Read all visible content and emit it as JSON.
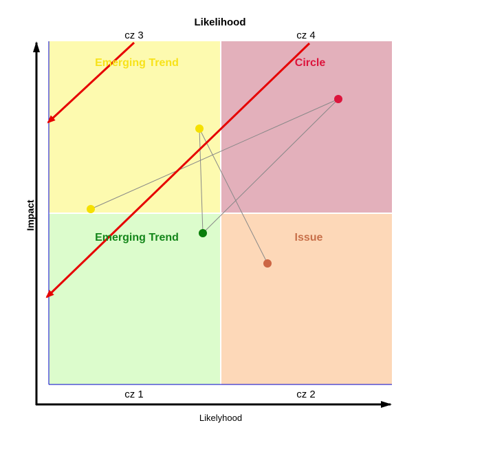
{
  "title": "Likelihood",
  "x_axis_label": "Likelyhood",
  "y_axis_label": "Impact",
  "zones": {
    "top_left": "cz 3",
    "top_right": "cz 4",
    "bottom_left": "cz 1",
    "bottom_right": "cz 2"
  },
  "quadrants": {
    "top_left": {
      "label": "Emerging Trend",
      "fill": "#fdfaaf",
      "label_color": "#f7e21a"
    },
    "top_right": {
      "label": "Circle",
      "fill": "#e3b0bb",
      "label_color": "#dc143c"
    },
    "bottom_left": {
      "label": "Emerging Trend",
      "fill": "#dcfccc",
      "label_color": "#14861a"
    },
    "bottom_right": {
      "label": "Issue",
      "fill": "#fdd8b8",
      "label_color": "#c8704a"
    }
  },
  "colors": {
    "axis": "#000000",
    "plot_border": "#0000cc",
    "trend_arrow": "#e60000",
    "connector": "#888888",
    "point_yellow": "#f5e000",
    "point_green": "#0a7d0a",
    "point_red": "#dc143c",
    "point_orange": "#cc6644"
  }
}
